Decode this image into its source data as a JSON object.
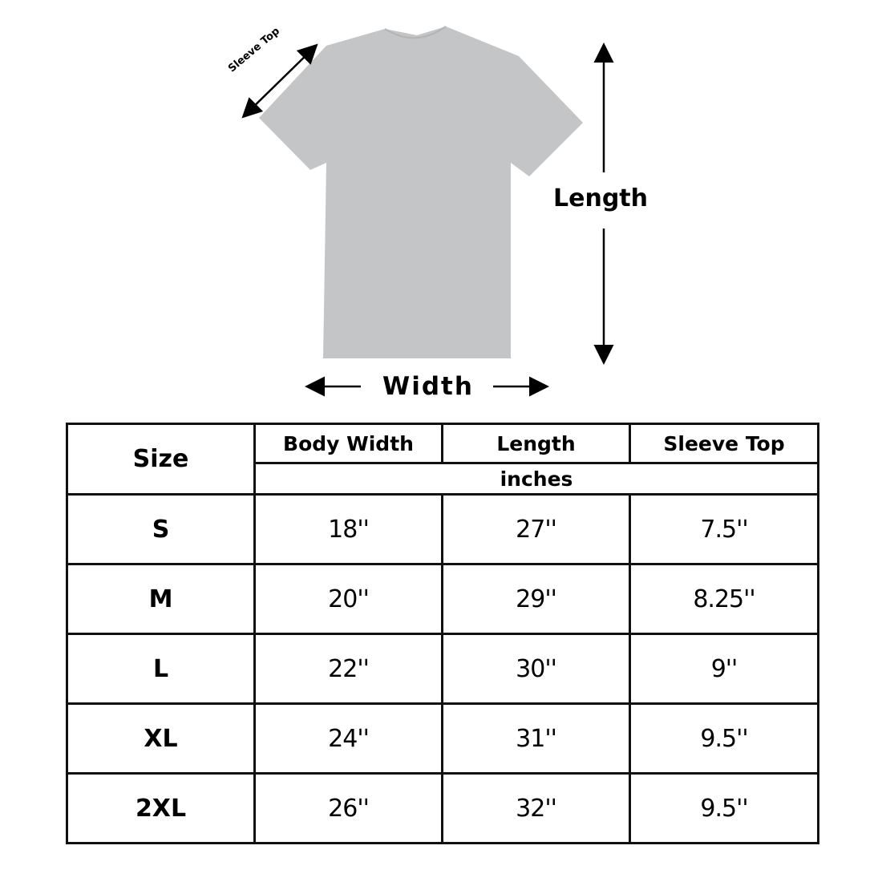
{
  "diagram": {
    "sleeve_label": "Sleeve Top",
    "length_label": "Length",
    "width_label": "Width",
    "shirt_color": "#c4c5c7"
  },
  "table": {
    "size_header": "Size",
    "columns": [
      "Body Width",
      "Length",
      "Sleeve Top"
    ],
    "unit": "inches",
    "rows": [
      {
        "size": "S",
        "values": [
          "18''",
          "27''",
          "7.5''"
        ]
      },
      {
        "size": "M",
        "values": [
          "20''",
          "29''",
          "8.25''"
        ]
      },
      {
        "size": "L",
        "values": [
          "22''",
          "30''",
          "9''"
        ]
      },
      {
        "size": "XL",
        "values": [
          "24''",
          "31''",
          "9.5''"
        ]
      },
      {
        "size": "2XL",
        "values": [
          "26''",
          "32''",
          "9.5''"
        ]
      }
    ]
  }
}
